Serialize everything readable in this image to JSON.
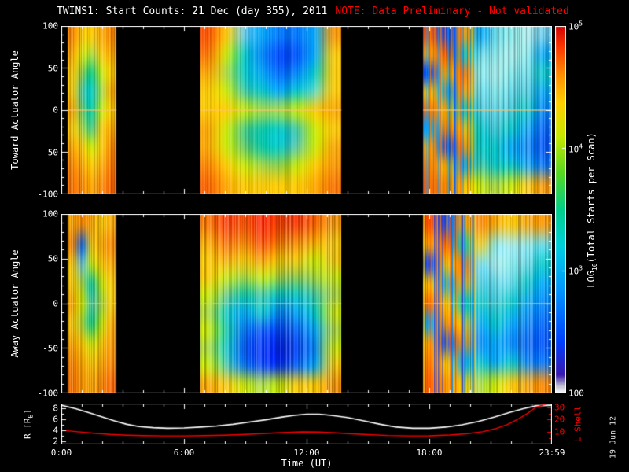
{
  "title": {
    "main": "TWINS1: Start Counts: 21 Dec (day 355), 2011",
    "note": "NOTE: Data Preliminary - Not validated"
  },
  "date_stamp": "19 Jun 12",
  "colors": {
    "background": "#000000",
    "foreground": "#ffffff",
    "note": "#ff0000",
    "r_line": "#ffffff",
    "l_line": "#ff0000"
  },
  "chart_data": {
    "type": "heatmap",
    "xlabel": "Time (UT)",
    "x_range_hours": [
      0,
      24
    ],
    "x_ticks": {
      "hours": [
        0,
        6,
        12,
        18,
        24
      ],
      "labels": [
        "0:00",
        "6:00",
        "12:00",
        "18:00",
        "23:59"
      ]
    },
    "colorbar": {
      "label_prefix": "LOG",
      "label_sub": "10",
      "label_suffix": "(Total Starts per Scan)",
      "stops": [
        [
          0.0,
          "#ffffff"
        ],
        [
          0.02,
          "#c0c0d0"
        ],
        [
          0.05,
          "#3a18b0"
        ],
        [
          0.14,
          "#0040ff"
        ],
        [
          0.28,
          "#0096ff"
        ],
        [
          0.4,
          "#00cfe0"
        ],
        [
          0.5,
          "#00cf8a"
        ],
        [
          0.6,
          "#57d821"
        ],
        [
          0.7,
          "#c8e800"
        ],
        [
          0.79,
          "#ffd000"
        ],
        [
          0.87,
          "#ff8c00"
        ],
        [
          0.94,
          "#ff3a00"
        ],
        [
          1.0,
          "#d40000"
        ]
      ],
      "ticks": [
        {
          "base": "10",
          "exp": "5",
          "frac": 1.0
        },
        {
          "base": "10",
          "exp": "4",
          "frac": 0.6667
        },
        {
          "base": "10",
          "exp": "3",
          "frac": 0.3333
        },
        {
          "base": "100",
          "exp": "",
          "frac": 0.0
        }
      ]
    },
    "spectrograms": [
      {
        "id": "toward",
        "ylabel": "Toward Actuator Angle",
        "ylim": [
          -100,
          100
        ],
        "yticks": [
          100,
          50,
          0,
          -50,
          -100
        ],
        "zero_line": true,
        "segments": [
          {
            "t0": 0.3,
            "t1": 2.7,
            "stripes": "medium",
            "noisy": false,
            "grid": [
              [
                "#ff8800",
                "#ffcc00",
                "#ffcc00",
                "#ffaa00",
                "#ff8800"
              ],
              [
                "#ffaa00",
                "#ddee00",
                "#aadd44",
                "#ffcc00",
                "#ffaa00"
              ],
              [
                "#ffcc00",
                "#88cc44",
                "#00cc88",
                "#ccee00",
                "#ffcc00"
              ],
              [
                "#ffcc00",
                "#44ccaa",
                "#00cccc",
                "#aadd44",
                "#ffaa00"
              ],
              [
                "#ffaa00",
                "#66cc66",
                "#00ccaa",
                "#ccee00",
                "#ffcc00"
              ],
              [
                "#ffcc00",
                "#aadd44",
                "#44cc88",
                "#ffcc00",
                "#ffaa00"
              ],
              [
                "#ffaa00",
                "#ffcc00",
                "#ccee00",
                "#ffcc00",
                "#ff8800"
              ],
              [
                "#ff8800",
                "#ffaa00",
                "#ffcc00",
                "#ffaa00",
                "#ff7700"
              ],
              [
                "#ff7700",
                "#ff8800",
                "#ffaa00",
                "#ff8800",
                "#ff6600"
              ]
            ]
          },
          {
            "t0": 6.8,
            "t1": 13.7,
            "stripes": "light",
            "noisy": false,
            "grid": [
              [
                "#ff5500",
                "#ffcc00",
                "#66ccee",
                "#00aaff",
                "#0077ff",
                "#0077ff",
                "#00aaff",
                "#ff9900"
              ],
              [
                "#ff7700",
                "#ccee00",
                "#00cccc",
                "#0088ff",
                "#0044ff",
                "#0055ff",
                "#00aaff",
                "#ffcc00"
              ],
              [
                "#ffaa00",
                "#aadd44",
                "#00cccc",
                "#00aaff",
                "#0066ff",
                "#0088ff",
                "#00cccc",
                "#ffcc00"
              ],
              [
                "#ffcc00",
                "#ccee00",
                "#44ccaa",
                "#00cccc",
                "#00aaff",
                "#00cccc",
                "#66ddcc",
                "#ffcc00"
              ],
              [
                "#ffcc00",
                "#ffcc00",
                "#ccee00",
                "#aadd44",
                "#aadd44",
                "#ccee00",
                "#ffcc00",
                "#ffaa00"
              ],
              [
                "#ffaa00",
                "#ccee00",
                "#44cc88",
                "#00ccaa",
                "#00cccc",
                "#44ccaa",
                "#ccee00",
                "#ffcc00"
              ],
              [
                "#ffaa00",
                "#ccee00",
                "#66cc66",
                "#00ccaa",
                "#00cccc",
                "#66ccaa",
                "#ccee00",
                "#ffaa00"
              ],
              [
                "#ff8800",
                "#ffcc00",
                "#ccee00",
                "#aadd44",
                "#88cc44",
                "#ccee00",
                "#ffcc00",
                "#ff9900"
              ],
              [
                "#ff6600",
                "#ffaa00",
                "#ffcc00",
                "#ffcc00",
                "#ffcc00",
                "#ffcc00",
                "#ffaa00",
                "#ff7700"
              ]
            ]
          },
          {
            "t0": 17.7,
            "t1": 23.95,
            "stripes": "medium",
            "noisy": true,
            "noisy_frac": 0.4,
            "grid": [
              [
                "#ff5500",
                "#0044ff",
                "#ffaa00",
                "#00aaff",
                "#66ddee",
                "#88eeee",
                "#aaeeee",
                "#66ccee"
              ],
              [
                "#ffaa00",
                "#ff5500",
                "#00cccc",
                "#66ddee",
                "#88eeee",
                "#aaeeee",
                "#88eeee",
                "#00aaff"
              ],
              [
                "#0044ff",
                "#ffcc00",
                "#ff7700",
                "#88eeee",
                "#aaeeee",
                "#88eeee",
                "#66ddee",
                "#00cccc"
              ],
              [
                "#ffcc00",
                "#00aaff",
                "#ffaa00",
                "#66ddee",
                "#88eeee",
                "#66ddee",
                "#44ccdd",
                "#00aaff"
              ],
              [
                "#ff7700",
                "#ffcc00",
                "#00cccc",
                "#44ccdd",
                "#66ddee",
                "#44ccdd",
                "#00cccc",
                "#0088ff"
              ],
              [
                "#00aaff",
                "#ff8800",
                "#ffcc00",
                "#00cccc",
                "#44ccdd",
                "#00cccc",
                "#00aaff",
                "#0066ff"
              ],
              [
                "#ffaa00",
                "#0044ff",
                "#ff9900",
                "#00cccc",
                "#00cccc",
                "#00aaff",
                "#0088ff",
                "#0055ff"
              ],
              [
                "#ff8800",
                "#ffcc00",
                "#00aaff",
                "#44ccaa",
                "#00cccc",
                "#00cccc",
                "#00aaff",
                "#0077ff"
              ],
              [
                "#ff6600",
                "#ff9900",
                "#ffcc00",
                "#ccee00",
                "#aadd44",
                "#ccee00",
                "#ffcc00",
                "#ff9900"
              ]
            ]
          }
        ]
      },
      {
        "id": "away",
        "ylabel": "Away Actuator Angle",
        "ylim": [
          -100,
          100
        ],
        "yticks": [
          100,
          50,
          0,
          -50,
          -100
        ],
        "zero_line": true,
        "segments": [
          {
            "t0": 0.3,
            "t1": 2.7,
            "stripes": "medium",
            "noisy": false,
            "grid": [
              [
                "#ffaa00",
                "#ff8800",
                "#ffaa00",
                "#ffcc00",
                "#ffaa00"
              ],
              [
                "#ff8800",
                "#0066ff",
                "#ffcc00",
                "#ffaa00",
                "#ff8800"
              ],
              [
                "#ffcc00",
                "#66ccee",
                "#ccee00",
                "#ffcc00",
                "#ffaa00"
              ],
              [
                "#ffcc00",
                "#aadd44",
                "#00ccaa",
                "#ccee00",
                "#ffcc00"
              ],
              [
                "#ffaa00",
                "#ccee00",
                "#44ccaa",
                "#aadd44",
                "#ffcc00"
              ],
              [
                "#ffcc00",
                "#aadd44",
                "#00cc88",
                "#ccee00",
                "#ffaa00"
              ],
              [
                "#ffaa00",
                "#ffcc00",
                "#ccee00",
                "#ffcc00",
                "#ff9900"
              ],
              [
                "#ff8800",
                "#ffaa00",
                "#ffcc00",
                "#ffaa00",
                "#ff8800"
              ],
              [
                "#ff7700",
                "#ff9900",
                "#ffaa00",
                "#ff8800",
                "#ff6600"
              ]
            ]
          },
          {
            "t0": 6.8,
            "t1": 13.7,
            "stripes": "medium",
            "noisy": false,
            "grid": [
              [
                "#ff7700",
                "#ff3300",
                "#ff5500",
                "#ff2200",
                "#ff4400",
                "#ff3300",
                "#ff6600",
                "#ff9900"
              ],
              [
                "#ffaa00",
                "#ff6600",
                "#ff8800",
                "#ff4400",
                "#ff7700",
                "#ff8800",
                "#ffaa00",
                "#ffcc00"
              ],
              [
                "#ffcc00",
                "#ffaa00",
                "#ffcc00",
                "#ff9900",
                "#ffcc00",
                "#ffcc00",
                "#ccee00",
                "#ffcc00"
              ],
              [
                "#ffcc00",
                "#ccee00",
                "#aadd44",
                "#ccee00",
                "#aadd44",
                "#88cc44",
                "#aadd44",
                "#ccee00"
              ],
              [
                "#ccee00",
                "#66cc88",
                "#00ccaa",
                "#44ccaa",
                "#00cccc",
                "#00cccc",
                "#44ccaa",
                "#aadd44"
              ],
              [
                "#aadd44",
                "#00cccc",
                "#00aaff",
                "#00cccc",
                "#0088ff",
                "#00aaff",
                "#00cccc",
                "#ccee00"
              ],
              [
                "#ccee00",
                "#00ccaa",
                "#0077ff",
                "#0055ff",
                "#0044ff",
                "#0066ff",
                "#00aaff",
                "#aadd44"
              ],
              [
                "#aadd44",
                "#00cccc",
                "#0055ff",
                "#0033ff",
                "#0022ee",
                "#0044ff",
                "#0088ff",
                "#ccee00"
              ],
              [
                "#ccee00",
                "#44ccaa",
                "#0077ff",
                "#0044ff",
                "#0033ff",
                "#0066ff",
                "#00aaff",
                "#ffcc00"
              ],
              [
                "#ffaa00",
                "#ffcc00",
                "#ccee00",
                "#aadd44",
                "#ccee00",
                "#ffcc00",
                "#ffcc00",
                "#ff9900"
              ]
            ]
          },
          {
            "t0": 17.7,
            "t1": 23.95,
            "stripes": "medium",
            "noisy": true,
            "noisy_frac": 0.4,
            "grid": [
              [
                "#ff5500",
                "#0044ff",
                "#ffaa00",
                "#ff8800",
                "#ffaa00",
                "#ffcc00",
                "#ffaa00",
                "#ff9900"
              ],
              [
                "#ffaa00",
                "#ff5500",
                "#00cccc",
                "#ffcc00",
                "#88eeee",
                "#aaeeee",
                "#88eeee",
                "#66ddee"
              ],
              [
                "#0044ff",
                "#ffcc00",
                "#ff7700",
                "#66ddee",
                "#aaeeee",
                "#88eeee",
                "#66ddee",
                "#00cccc"
              ],
              [
                "#ffcc00",
                "#00aaff",
                "#ffaa00",
                "#44ccdd",
                "#66ddee",
                "#66ddee",
                "#00cccc",
                "#00aaff"
              ],
              [
                "#ff7700",
                "#ffcc00",
                "#00cccc",
                "#00cccc",
                "#44ccdd",
                "#00cccc",
                "#00aaff",
                "#0088ff"
              ],
              [
                "#00aaff",
                "#ff8800",
                "#ffcc00",
                "#00aaff",
                "#00cccc",
                "#00aaff",
                "#0088ff",
                "#0066ff"
              ],
              [
                "#ffaa00",
                "#0044ff",
                "#ff9900",
                "#0088ff",
                "#00aaff",
                "#0088ff",
                "#0066ff",
                "#0055ff"
              ],
              [
                "#ff8800",
                "#ffcc00",
                "#00aaff",
                "#00cccc",
                "#00aaff",
                "#00cccc",
                "#0088ff",
                "#0077ff"
              ],
              [
                "#ff6600",
                "#ff9900",
                "#ffcc00",
                "#aadd44",
                "#ccee00",
                "#ffcc00",
                "#ffaa00",
                "#ff8800"
              ]
            ]
          }
        ]
      }
    ],
    "line_panel": {
      "left": {
        "label_prefix": "R [R",
        "label_sub": "E",
        "label_suffix": "]",
        "color": "#ffffff",
        "ticks": [
          8,
          6,
          4,
          2
        ],
        "minor_step": 1,
        "range": [
          1.5,
          8.8
        ],
        "x": [
          0,
          0.7,
          1.4,
          2,
          2.6,
          3.2,
          3.8,
          4.5,
          5.2,
          6,
          6.8,
          7.6,
          8.4,
          9.2,
          10,
          10.8,
          11.4,
          12,
          12.6,
          13.2,
          14,
          14.8,
          15.6,
          16.4,
          17.2,
          18,
          18.8,
          19.6,
          20.4,
          21.2,
          22,
          22.6,
          23.2,
          24
        ],
        "y": [
          8.5,
          7.9,
          7.1,
          6.4,
          5.7,
          5.1,
          4.7,
          4.5,
          4.4,
          4.45,
          4.6,
          4.8,
          5.1,
          5.5,
          5.9,
          6.4,
          6.7,
          6.9,
          6.9,
          6.7,
          6.3,
          5.7,
          5.1,
          4.6,
          4.4,
          4.4,
          4.6,
          5.0,
          5.6,
          6.4,
          7.3,
          7.9,
          8.4,
          8.5
        ]
      },
      "right": {
        "label": "L Shell",
        "color": "#ff0000",
        "ticks": [
          30,
          20,
          10
        ],
        "minor_step": 5,
        "range": [
          0,
          33
        ],
        "x": [
          0,
          0.8,
          1.6,
          2.4,
          3.2,
          4,
          5,
          6,
          7,
          8,
          9,
          10,
          11,
          11.8,
          12.6,
          13.4,
          14.2,
          15,
          16,
          17,
          18,
          19,
          19.8,
          20.6,
          21.2,
          21.8,
          22.3,
          22.8,
          23.2,
          24
        ],
        "y": [
          11.5,
          10.2,
          9.0,
          8.1,
          7.5,
          7.1,
          6.9,
          6.9,
          7.1,
          7.5,
          8.1,
          8.9,
          9.7,
          10.2,
          10.0,
          9.4,
          8.6,
          7.9,
          7.2,
          6.9,
          7.0,
          7.6,
          8.6,
          10.2,
          12.5,
          16,
          20,
          25,
          30,
          34
        ]
      }
    }
  }
}
